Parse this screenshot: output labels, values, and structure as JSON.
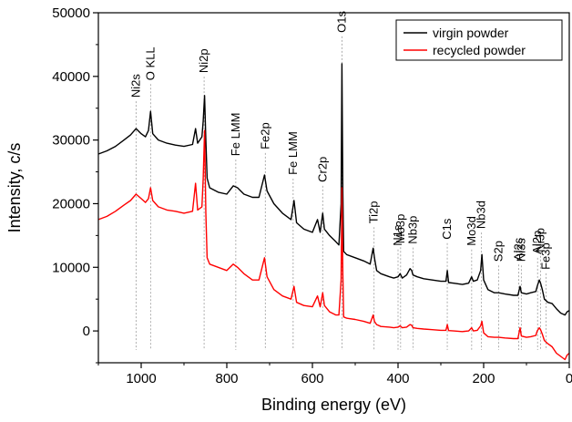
{
  "chart_data": {
    "type": "line",
    "title": "",
    "xlabel": "Binding energy (eV)",
    "ylabel": "Intensity, c/s",
    "xlim": [
      1100,
      0
    ],
    "ylim": [
      -5000,
      50000
    ],
    "x_ticks": [
      1000,
      800,
      600,
      400,
      200,
      0
    ],
    "y_ticks": [
      0,
      10000,
      20000,
      30000,
      40000,
      50000
    ],
    "grid": false,
    "legend_position": "top-right",
    "series": [
      {
        "name": "virgin powder",
        "color": "#000000",
        "points": [
          [
            1100,
            27800
          ],
          [
            1080,
            28300
          ],
          [
            1060,
            29000
          ],
          [
            1040,
            30000
          ],
          [
            1025,
            30800
          ],
          [
            1012,
            31800
          ],
          [
            1000,
            31000
          ],
          [
            990,
            30500
          ],
          [
            983,
            31500
          ],
          [
            978,
            34500
          ],
          [
            973,
            31000
          ],
          [
            960,
            30000
          ],
          [
            940,
            29500
          ],
          [
            920,
            29200
          ],
          [
            900,
            29000
          ],
          [
            880,
            29300
          ],
          [
            873,
            31800
          ],
          [
            868,
            29500
          ],
          [
            858,
            30500
          ],
          [
            855,
            33000
          ],
          [
            852,
            37000
          ],
          [
            849,
            30000
          ],
          [
            846,
            24000
          ],
          [
            840,
            22500
          ],
          [
            820,
            21800
          ],
          [
            800,
            21500
          ],
          [
            785,
            22800
          ],
          [
            775,
            22500
          ],
          [
            760,
            21500
          ],
          [
            740,
            21000
          ],
          [
            725,
            21000
          ],
          [
            712,
            24500
          ],
          [
            706,
            22000
          ],
          [
            690,
            20000
          ],
          [
            670,
            18500
          ],
          [
            650,
            17500
          ],
          [
            643,
            20500
          ],
          [
            637,
            17000
          ],
          [
            620,
            16000
          ],
          [
            600,
            15500
          ],
          [
            588,
            17500
          ],
          [
            582,
            15500
          ],
          [
            576,
            18500
          ],
          [
            572,
            16000
          ],
          [
            560,
            15000
          ],
          [
            545,
            14000
          ],
          [
            538,
            13500
          ],
          [
            533,
            20000
          ],
          [
            531,
            42000
          ],
          [
            529,
            22000
          ],
          [
            527,
            12500
          ],
          [
            520,
            12000
          ],
          [
            500,
            11500
          ],
          [
            480,
            11000
          ],
          [
            465,
            10500
          ],
          [
            458,
            13000
          ],
          [
            455,
            11500
          ],
          [
            450,
            9500
          ],
          [
            440,
            9000
          ],
          [
            420,
            8500
          ],
          [
            410,
            8300
          ],
          [
            400,
            8500
          ],
          [
            395,
            9000
          ],
          [
            390,
            8300
          ],
          [
            380,
            8800
          ],
          [
            372,
            9800
          ],
          [
            368,
            9500
          ],
          [
            365,
            8800
          ],
          [
            355,
            8500
          ],
          [
            340,
            8200
          ],
          [
            320,
            8000
          ],
          [
            300,
            7800
          ],
          [
            288,
            7800
          ],
          [
            285,
            9500
          ],
          [
            282,
            7600
          ],
          [
            270,
            7500
          ],
          [
            250,
            7300
          ],
          [
            235,
            7500
          ],
          [
            228,
            8500
          ],
          [
            224,
            7800
          ],
          [
            215,
            8000
          ],
          [
            207,
            9500
          ],
          [
            204,
            12000
          ],
          [
            200,
            8000
          ],
          [
            190,
            6500
          ],
          [
            175,
            6000
          ],
          [
            165,
            6000
          ],
          [
            150,
            5800
          ],
          [
            130,
            5600
          ],
          [
            120,
            5600
          ],
          [
            115,
            7000
          ],
          [
            112,
            6000
          ],
          [
            100,
            5800
          ],
          [
            90,
            6000
          ],
          [
            78,
            6200
          ],
          [
            75,
            7000
          ],
          [
            70,
            8000
          ],
          [
            67,
            7500
          ],
          [
            63,
            6500
          ],
          [
            58,
            5000
          ],
          [
            50,
            4500
          ],
          [
            40,
            4300
          ],
          [
            30,
            3500
          ],
          [
            20,
            2800
          ],
          [
            10,
            2500
          ],
          [
            5,
            3000
          ],
          [
            0,
            3200
          ]
        ]
      },
      {
        "name": "recycled powder",
        "color": "#ff0000",
        "points": [
          [
            1100,
            17500
          ],
          [
            1080,
            18000
          ],
          [
            1060,
            18800
          ],
          [
            1040,
            19800
          ],
          [
            1025,
            20500
          ],
          [
            1012,
            21500
          ],
          [
            1000,
            20800
          ],
          [
            990,
            20200
          ],
          [
            983,
            20800
          ],
          [
            978,
            22500
          ],
          [
            973,
            20500
          ],
          [
            960,
            19500
          ],
          [
            940,
            19000
          ],
          [
            920,
            18800
          ],
          [
            900,
            18500
          ],
          [
            880,
            18800
          ],
          [
            873,
            23200
          ],
          [
            868,
            19000
          ],
          [
            858,
            19500
          ],
          [
            855,
            24000
          ],
          [
            852,
            31500
          ],
          [
            849,
            18500
          ],
          [
            846,
            11500
          ],
          [
            840,
            10500
          ],
          [
            820,
            10000
          ],
          [
            800,
            9500
          ],
          [
            785,
            10500
          ],
          [
            775,
            10000
          ],
          [
            760,
            9000
          ],
          [
            740,
            8000
          ],
          [
            725,
            8000
          ],
          [
            712,
            11500
          ],
          [
            706,
            8500
          ],
          [
            690,
            6500
          ],
          [
            670,
            5500
          ],
          [
            650,
            5000
          ],
          [
            643,
            7000
          ],
          [
            637,
            4500
          ],
          [
            620,
            4000
          ],
          [
            600,
            3800
          ],
          [
            588,
            5500
          ],
          [
            582,
            3800
          ],
          [
            576,
            6000
          ],
          [
            572,
            4000
          ],
          [
            560,
            3000
          ],
          [
            545,
            2500
          ],
          [
            538,
            2500
          ],
          [
            533,
            8000
          ],
          [
            531,
            22500
          ],
          [
            529,
            9000
          ],
          [
            527,
            2200
          ],
          [
            520,
            2000
          ],
          [
            500,
            1800
          ],
          [
            480,
            1500
          ],
          [
            465,
            1200
          ],
          [
            458,
            2500
          ],
          [
            455,
            1500
          ],
          [
            450,
            1000
          ],
          [
            440,
            700
          ],
          [
            420,
            600
          ],
          [
            410,
            500
          ],
          [
            400,
            600
          ],
          [
            395,
            800
          ],
          [
            390,
            500
          ],
          [
            380,
            600
          ],
          [
            372,
            1000
          ],
          [
            368,
            900
          ],
          [
            365,
            500
          ],
          [
            355,
            400
          ],
          [
            340,
            300
          ],
          [
            320,
            200
          ],
          [
            300,
            100
          ],
          [
            288,
            100
          ],
          [
            285,
            1000
          ],
          [
            282,
            50
          ],
          [
            270,
            0
          ],
          [
            250,
            -100
          ],
          [
            235,
            0
          ],
          [
            228,
            500
          ],
          [
            224,
            0
          ],
          [
            215,
            100
          ],
          [
            207,
            800
          ],
          [
            204,
            1500
          ],
          [
            200,
            -300
          ],
          [
            190,
            -900
          ],
          [
            175,
            -1000
          ],
          [
            165,
            -1000
          ],
          [
            150,
            -1100
          ],
          [
            130,
            -1200
          ],
          [
            120,
            -1200
          ],
          [
            115,
            500
          ],
          [
            112,
            -800
          ],
          [
            100,
            -1000
          ],
          [
            90,
            -900
          ],
          [
            78,
            -700
          ],
          [
            75,
            0
          ],
          [
            70,
            500
          ],
          [
            67,
            200
          ],
          [
            63,
            -500
          ],
          [
            58,
            -1500
          ],
          [
            50,
            -2000
          ],
          [
            40,
            -2500
          ],
          [
            30,
            -3500
          ],
          [
            20,
            -4000
          ],
          [
            10,
            -4500
          ],
          [
            5,
            -3800
          ],
          [
            0,
            -3500
          ]
        ]
      }
    ],
    "peak_labels": [
      {
        "text": "Ni2s",
        "x": 1012
      },
      {
        "text": "O KLL",
        "x": 978
      },
      {
        "text": "Ni2p",
        "x": 853
      },
      {
        "text": "Fe LMM",
        "x": 779
      },
      {
        "text": "Fe2p",
        "x": 710
      },
      {
        "text": "Fe LMM",
        "x": 645
      },
      {
        "text": "Cr2p",
        "x": 576
      },
      {
        "text": "O1s",
        "x": 531
      },
      {
        "text": "Ti2p",
        "x": 456
      },
      {
        "text": "N1s",
        "x": 400
      },
      {
        "text": "Mo3p",
        "x": 394
      },
      {
        "text": "Nb3p",
        "x": 365
      },
      {
        "text": "C1s",
        "x": 285
      },
      {
        "text": "Mo3d",
        "x": 228
      },
      {
        "text": "Nb3d",
        "x": 205
      },
      {
        "text": "S2p",
        "x": 165
      },
      {
        "text": "Al2s",
        "x": 118
      },
      {
        "text": "Ni3s",
        "x": 112
      },
      {
        "text": "Al2p",
        "x": 74
      },
      {
        "text": "Ni3p",
        "x": 67
      },
      {
        "text": "Fe3p",
        "x": 54
      }
    ]
  }
}
